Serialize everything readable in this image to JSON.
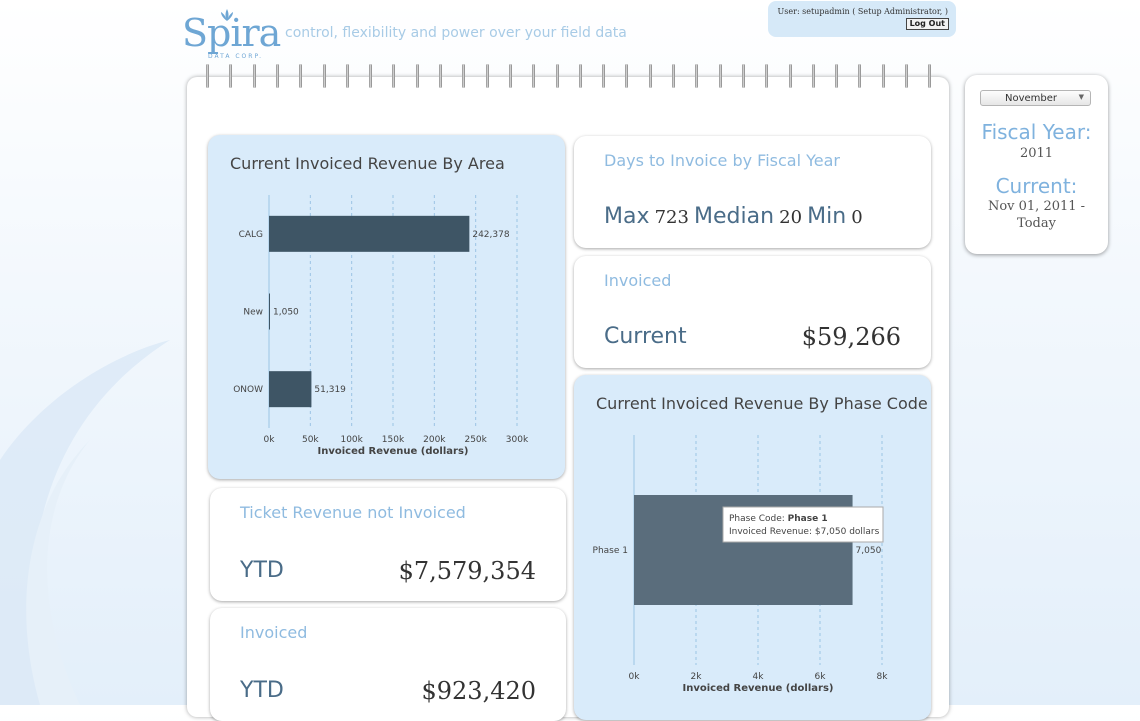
{
  "header": {
    "logo_text": "Spira",
    "logo_subtext": "DATA CORP.",
    "tagline": "control, flexibility and power over your field data",
    "user_text": "User: setupadmin ( Setup Administrator, )",
    "logout_label": "Log Out"
  },
  "sidepanel": {
    "month_selected": "November",
    "fiscal_year_label": "Fiscal Year:",
    "fiscal_year_value": "2011",
    "current_label": "Current:",
    "current_value_line1": "Nov 01, 2011 -",
    "current_value_line2": "Today"
  },
  "cards": {
    "days_to_invoice": {
      "title": "Days to Invoice by Fiscal Year",
      "max_label": "Max",
      "max_value": "723",
      "median_label": "Median",
      "median_value": "20",
      "min_label": "Min",
      "min_value": "0"
    },
    "invoiced_current": {
      "title": "Invoiced",
      "label": "Current",
      "value": "$59,266"
    },
    "ticket_revenue": {
      "title": "Ticket Revenue not Invoiced",
      "label": "YTD",
      "value": "$7,579,354"
    },
    "invoiced_ytd": {
      "title": "Invoiced",
      "label": "YTD",
      "value": "$923,420"
    }
  },
  "colors": {
    "bar": "#3e5565",
    "bar_phase": "#5a6d7c",
    "accent": "#7fb2de",
    "card_blue": "#d9ebfa"
  },
  "chart_data": [
    {
      "type": "bar",
      "orientation": "horizontal",
      "title": "Current Invoiced Revenue By Area",
      "categories": [
        "CALG",
        "New",
        "ONOW"
      ],
      "values": [
        242378,
        1050,
        51319
      ],
      "value_labels": [
        "242,378",
        "1,050",
        "51,319"
      ],
      "xlabel": "Invoiced Revenue (dollars)",
      "xlim": [
        0,
        300000
      ],
      "xticks": [
        "0k",
        "50k",
        "100k",
        "150k",
        "200k",
        "250k",
        "300k"
      ],
      "grid": true
    },
    {
      "type": "bar",
      "orientation": "horizontal",
      "title": "Current Invoiced Revenue By Phase Code",
      "categories": [
        "Phase 1"
      ],
      "values": [
        7050
      ],
      "value_labels": [
        "7,050"
      ],
      "xlabel": "Invoiced Revenue (dollars)",
      "xlim": [
        0,
        8000
      ],
      "xticks": [
        "0k",
        "2k",
        "4k",
        "6k",
        "8k"
      ],
      "grid": true,
      "tooltip": {
        "line1_prefix": "Phase Code: ",
        "line1_value": "Phase 1",
        "line2": "Invoiced Revenue: $7,050 dollars"
      }
    }
  ]
}
